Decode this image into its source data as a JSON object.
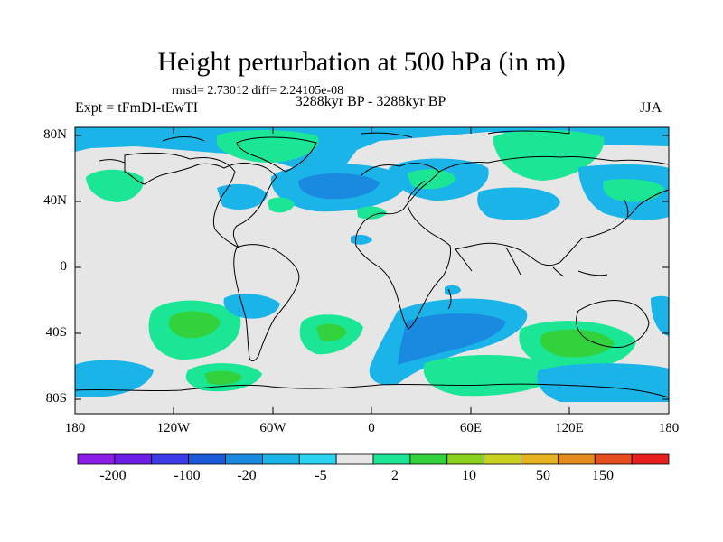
{
  "title": "Height perturbation at 500 hPa (in m)",
  "stats": "rmsd= 2.73012 diff= 2.24105e-08",
  "left_label": "Expt = tFmDI-tEwTI",
  "center_label": "3288kyr BP - 3288kyr BP",
  "right_label": "JJA",
  "y_ticks": [
    "80N",
    "40N",
    "0",
    "40S",
    "80S"
  ],
  "x_ticks": [
    "180",
    "120W",
    "60W",
    "0",
    "60E",
    "120E",
    "180"
  ],
  "colorbar": {
    "labels": [
      "-200",
      "-100",
      "-20",
      "-5",
      "2",
      "10",
      "50",
      "150"
    ],
    "colors": [
      "#8a1ee6",
      "#6a1ee6",
      "#3a3ae6",
      "#1a5ad6",
      "#1a8ae0",
      "#1ab4e8",
      "#2ad4f0",
      "#e6e6e6",
      "#1ae696",
      "#32d23c",
      "#8ad21e",
      "#c8d21e",
      "#e6b41e",
      "#e68c1e",
      "#e6501e",
      "#e61e1e"
    ]
  },
  "shading_colors": {
    "neutral": "#e6e6e6",
    "light_blue": "#1ab4e8",
    "blue": "#1a8ae0",
    "mid_green": "#1ae696",
    "green": "#32d23c"
  }
}
